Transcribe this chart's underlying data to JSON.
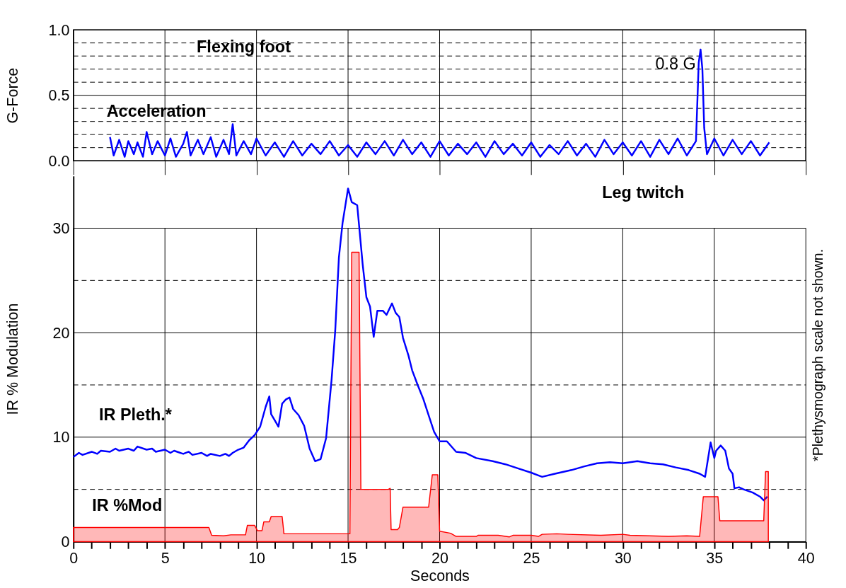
{
  "chart_data": [
    {
      "type": "line",
      "ylabel": "G-Force",
      "xlim": [
        0,
        40
      ],
      "xticks": [
        0,
        5,
        10,
        15,
        20,
        25,
        30,
        35,
        40
      ],
      "ylim": [
        0,
        1.0
      ],
      "yticks": [
        {
          "value": 0,
          "label": "0.0"
        },
        {
          "value": 0.1,
          "label": null
        },
        {
          "value": 0.2,
          "label": null
        },
        {
          "value": 0.3,
          "label": null
        },
        {
          "value": 0.4,
          "label": null
        },
        {
          "value": 0.5,
          "label": "0.5"
        },
        {
          "value": 0.6,
          "label": null
        },
        {
          "value": 0.7,
          "label": null
        },
        {
          "value": 0.8,
          "label": null
        },
        {
          "value": 0.9,
          "label": null
        },
        {
          "value": 1.0,
          "label": "1.0"
        }
      ],
      "grid": true,
      "tick_labels": "y",
      "marker": "none",
      "line_style": "solid",
      "series": [
        {
          "name": "Acceleration",
          "color": "#0000ff",
          "x": [
            2.0,
            2.2,
            2.5,
            2.8,
            3.0,
            3.3,
            3.5,
            3.8,
            4.0,
            4.3,
            4.6,
            5.0,
            5.3,
            5.6,
            6.0,
            6.2,
            6.4,
            6.8,
            7.1,
            7.5,
            7.8,
            8.2,
            8.5,
            8.7,
            8.9,
            9.3,
            9.7,
            10.0,
            10.5,
            11.0,
            11.5,
            12.0,
            12.5,
            13.0,
            13.5,
            14.0,
            14.5,
            15.0,
            15.5,
            16.0,
            16.5,
            17.0,
            17.5,
            18.0,
            18.5,
            19.0,
            19.5,
            20.0,
            20.5,
            21.0,
            21.5,
            22.0,
            22.5,
            23.0,
            23.5,
            24.0,
            24.5,
            25.0,
            25.5,
            26.0,
            26.5,
            27.0,
            27.5,
            28.0,
            28.5,
            29.0,
            29.5,
            30.0,
            30.5,
            31.0,
            31.5,
            32.0,
            32.5,
            33.0,
            33.5,
            34.0,
            34.15,
            34.25,
            34.35,
            34.45,
            34.6,
            35.0,
            35.5,
            36.0,
            36.5,
            37.0,
            37.5,
            38.0
          ],
          "values": [
            0.18,
            0.04,
            0.16,
            0.03,
            0.15,
            0.05,
            0.14,
            0.03,
            0.22,
            0.05,
            0.15,
            0.04,
            0.17,
            0.03,
            0.13,
            0.22,
            0.04,
            0.16,
            0.05,
            0.18,
            0.03,
            0.16,
            0.05,
            0.28,
            0.04,
            0.15,
            0.05,
            0.17,
            0.04,
            0.14,
            0.03,
            0.15,
            0.04,
            0.13,
            0.05,
            0.15,
            0.04,
            0.12,
            0.03,
            0.14,
            0.05,
            0.15,
            0.04,
            0.16,
            0.05,
            0.14,
            0.03,
            0.15,
            0.04,
            0.13,
            0.05,
            0.14,
            0.03,
            0.15,
            0.05,
            0.13,
            0.04,
            0.14,
            0.03,
            0.12,
            0.05,
            0.15,
            0.04,
            0.13,
            0.03,
            0.16,
            0.05,
            0.14,
            0.04,
            0.15,
            0.03,
            0.16,
            0.05,
            0.17,
            0.04,
            0.15,
            0.75,
            0.85,
            0.7,
            0.25,
            0.05,
            0.17,
            0.04,
            0.16,
            0.05,
            0.15,
            0.04,
            0.14
          ]
        }
      ],
      "annotations": [
        "Flexing foot",
        {
          "text": "0.8 G",
          "x": 34.3,
          "y": 0.8
        }
      ]
    },
    {
      "type": "line",
      "xlabel": "Seconds",
      "ylabel": "IR % Modulation",
      "xlim": [
        0,
        40
      ],
      "xticks": [
        0,
        {
          "value": 1,
          "label": null
        },
        {
          "value": 2,
          "label": null
        },
        {
          "value": 3,
          "label": null
        },
        {
          "value": 4,
          "label": null
        },
        5,
        {
          "value": 6,
          "label": null
        },
        {
          "value": 7,
          "label": null
        },
        {
          "value": 8,
          "label": null
        },
        {
          "value": 9,
          "label": null
        },
        10,
        {
          "value": 11,
          "label": null
        },
        {
          "value": 12,
          "label": null
        },
        {
          "value": 13,
          "label": null
        },
        {
          "value": 14,
          "label": null
        },
        15,
        {
          "value": 16,
          "label": null
        },
        {
          "value": 17,
          "label": null
        },
        {
          "value": 18,
          "label": null
        },
        {
          "value": 19,
          "label": null
        },
        20,
        {
          "value": 21,
          "label": null
        },
        {
          "value": 22,
          "label": null
        },
        {
          "value": 23,
          "label": null
        },
        {
          "value": 24,
          "label": null
        },
        25,
        {
          "value": 26,
          "label": null
        },
        {
          "value": 27,
          "label": null
        },
        {
          "value": 28,
          "label": null
        },
        {
          "value": 29,
          "label": null
        },
        30,
        {
          "value": 31,
          "label": null
        },
        {
          "value": 32,
          "label": null
        },
        {
          "value": 33,
          "label": null
        },
        {
          "value": 34,
          "label": null
        },
        35,
        {
          "value": 36,
          "label": null
        },
        {
          "value": 37,
          "label": null
        },
        {
          "value": 38,
          "label": null
        },
        {
          "value": 39,
          "label": null
        },
        40
      ],
      "ylim": [
        0,
        35
      ],
      "yticks": [
        0,
        {
          "value": 5,
          "label": null
        },
        10,
        {
          "value": 15,
          "label": null
        },
        20,
        {
          "value": 25,
          "label": null
        },
        30
      ],
      "grid": true,
      "marker": "none",
      "line_style": "solid",
      "series": [
        {
          "name": "IR Pleth.*",
          "type": "line",
          "color": "#0000ff",
          "x": [
            0,
            0.3,
            0.5,
            1.0,
            1.3,
            1.5,
            2.0,
            2.3,
            2.5,
            3.0,
            3.3,
            3.5,
            4.0,
            4.3,
            4.5,
            5.0,
            5.3,
            5.5,
            6.0,
            6.3,
            6.5,
            7.0,
            7.3,
            7.5,
            8.0,
            8.3,
            8.5,
            8.7,
            9.0,
            9.3,
            9.6,
            9.9,
            10.2,
            10.5,
            10.7,
            10.8,
            11.0,
            11.2,
            11.4,
            11.6,
            11.8,
            12.0,
            12.3,
            12.6,
            12.9,
            13.2,
            13.5,
            13.8,
            14.1,
            14.3,
            14.5,
            14.7,
            15.0,
            15.2,
            15.5,
            15.8,
            16.0,
            16.2,
            16.4,
            16.6,
            16.9,
            17.1,
            17.4,
            17.6,
            17.8,
            18.0,
            18.3,
            18.5,
            18.8,
            19.1,
            19.4,
            19.7,
            20.0,
            20.4,
            20.9,
            21.4,
            22.0,
            22.9,
            23.6,
            24.3,
            25.0,
            25.6,
            26.3,
            27.2,
            27.9,
            28.6,
            29.3,
            30.0,
            30.8,
            31.5,
            32.2,
            32.9,
            33.6,
            34.2,
            34.5,
            34.8,
            35.0,
            35.1,
            35.35,
            35.6,
            35.8,
            36.0,
            36.1,
            36.35,
            36.6,
            37.1,
            37.5,
            37.7,
            37.9
          ],
          "values": [
            8.1,
            8.5,
            8.3,
            8.6,
            8.4,
            8.7,
            8.6,
            8.9,
            8.7,
            8.9,
            8.7,
            9.1,
            8.8,
            8.9,
            8.6,
            8.8,
            8.5,
            8.7,
            8.4,
            8.6,
            8.3,
            8.5,
            8.2,
            8.4,
            8.2,
            8.4,
            8.2,
            8.5,
            8.8,
            9.0,
            9.7,
            10.2,
            11.0,
            12.9,
            13.9,
            12.2,
            11.6,
            11.0,
            13.2,
            13.6,
            13.8,
            12.7,
            12.1,
            11.1,
            8.9,
            7.7,
            7.9,
            9.9,
            15.5,
            20.2,
            27.2,
            30.5,
            33.8,
            32.5,
            32.2,
            26.5,
            23.4,
            22.5,
            19.6,
            22.1,
            22.1,
            21.7,
            22.8,
            21.9,
            21.5,
            19.5,
            17.8,
            16.4,
            15.0,
            13.7,
            12.1,
            10.5,
            9.6,
            9.6,
            8.6,
            8.5,
            8.0,
            7.7,
            7.4,
            7.0,
            6.6,
            6.2,
            6.5,
            6.85,
            7.2,
            7.5,
            7.6,
            7.5,
            7.7,
            7.5,
            7.4,
            7.1,
            6.85,
            6.5,
            6.2,
            9.5,
            8.0,
            8.7,
            9.2,
            8.7,
            7.0,
            6.5,
            5.1,
            5.2,
            5.0,
            4.7,
            4.3,
            3.95,
            4.3
          ]
        },
        {
          "name": "IR %Mod",
          "type": "area",
          "color": "#ff0000",
          "x": [
            0,
            7.4,
            7.55,
            8.2,
            8.6,
            9.4,
            9.5,
            9.9,
            10.05,
            10.3,
            10.4,
            10.7,
            10.8,
            11.4,
            11.5,
            15.1,
            15.2,
            15.6,
            15.7,
            17.2,
            17.3,
            17.35,
            17.7,
            17.8,
            18.0,
            19.4,
            19.6,
            19.9,
            20.0,
            20.6,
            20.9,
            22.0,
            22.1,
            23.2,
            23.8,
            24.0,
            25.0,
            25.4,
            25.6,
            26.4,
            27.0,
            28.8,
            30.0,
            30.4,
            32.5,
            33.5,
            34.2,
            34.4,
            35.2,
            35.3,
            37.7,
            37.8,
            37.95
          ],
          "values": [
            1.35,
            1.35,
            0.6,
            0.55,
            0.65,
            0.65,
            1.55,
            1.55,
            1.05,
            1.05,
            1.9,
            1.9,
            2.4,
            2.4,
            0.75,
            0.75,
            27.7,
            27.7,
            5.0,
            5.0,
            5.1,
            1.15,
            1.15,
            1.35,
            3.3,
            3.3,
            6.4,
            6.4,
            1.0,
            0.8,
            0.5,
            0.5,
            0.6,
            0.6,
            0.45,
            0.6,
            0.6,
            0.5,
            0.7,
            0.75,
            0.7,
            0.6,
            0.7,
            0.6,
            0.5,
            0.55,
            0.5,
            4.3,
            4.3,
            2.0,
            2.0,
            6.7,
            6.7
          ]
        }
      ],
      "annotations": [
        "Leg twitch",
        "*Plethysmograph scale not shown."
      ]
    }
  ]
}
